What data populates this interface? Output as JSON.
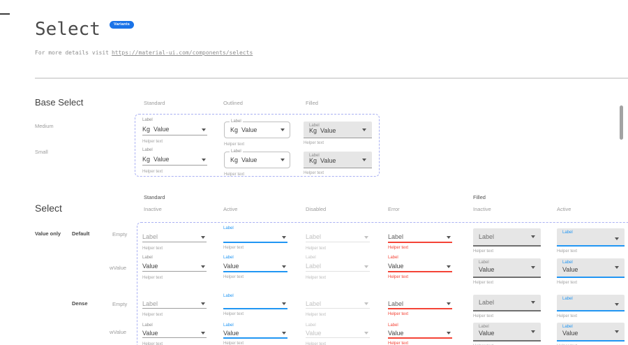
{
  "page": {
    "title": "Select",
    "badge": "Variants",
    "subtitle_prefix": "For more details visit",
    "subtitle_link": "https://material-ui.com/components/selects"
  },
  "colors": {
    "accent_blue": "#2196f3",
    "error_red": "#f44336",
    "badge_blue": "#1a73e8",
    "dashed_outline": "#a9b0f3",
    "filled_background": "#e6e6e6"
  },
  "base_section": {
    "heading": "Base Select",
    "columns": [
      "Standard",
      "Outlined",
      "Filled"
    ],
    "rows": [
      "Medium",
      "Small"
    ],
    "cell": {
      "label": "Label",
      "adornment": "Kg",
      "value": "Value",
      "helper": "Helper text"
    }
  },
  "select_section": {
    "heading": "Select",
    "group_headers": [
      "Standard",
      "Filled"
    ],
    "column_headers": [
      "Inactive",
      "Active",
      "Disabled",
      "Error",
      "Inactive",
      "Active"
    ],
    "row_group_label": "Value only",
    "row_labels": [
      "Default",
      "Dense"
    ],
    "subrow_labels": [
      "Empty",
      "wValue"
    ],
    "cell": {
      "label": "Label",
      "value": "Value",
      "helper": "Helper text"
    },
    "disabled_default_value": "Label"
  }
}
